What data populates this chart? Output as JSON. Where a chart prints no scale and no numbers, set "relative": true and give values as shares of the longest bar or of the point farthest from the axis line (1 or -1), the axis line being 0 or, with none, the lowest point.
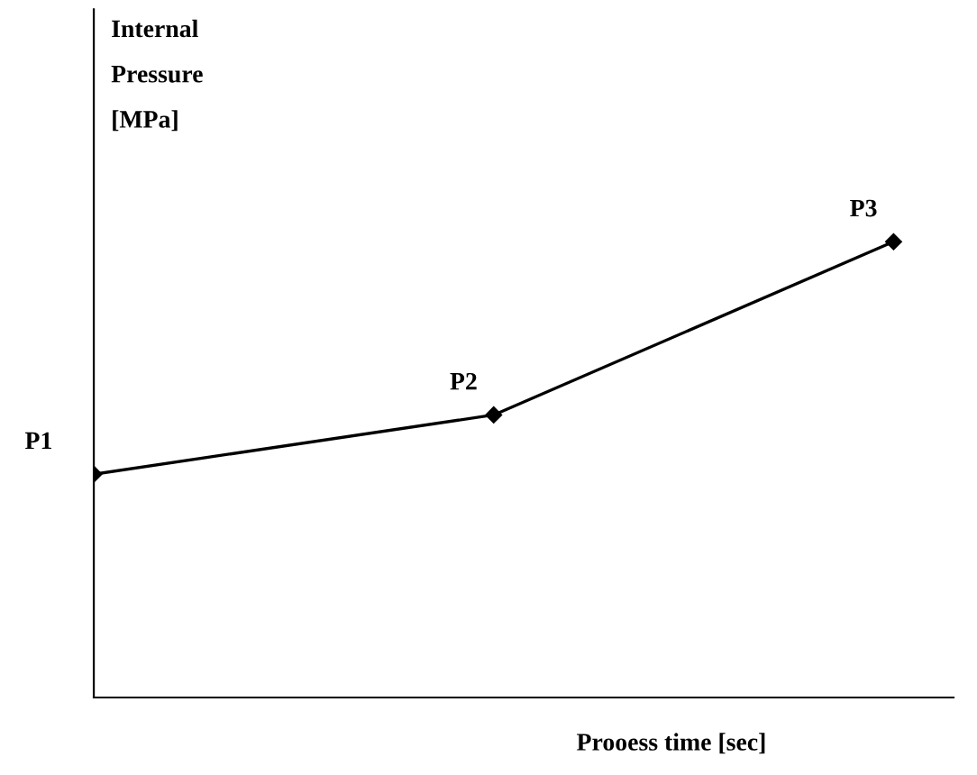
{
  "chart_data": {
    "type": "line",
    "relative": true,
    "ylabel": "Internal\nPressure\n[MPa]",
    "xlabel": "Prooess time [sec]",
    "categories": [
      null,
      null,
      null
    ],
    "series": [
      {
        "color": "#000000",
        "values": [
          0.49,
          0.62,
          1.0
        ]
      }
    ],
    "annotations": [
      "P1",
      "P2",
      "P3"
    ],
    "marker": "diamond",
    "line_style": "solid",
    "grid": false,
    "legend": false
  }
}
